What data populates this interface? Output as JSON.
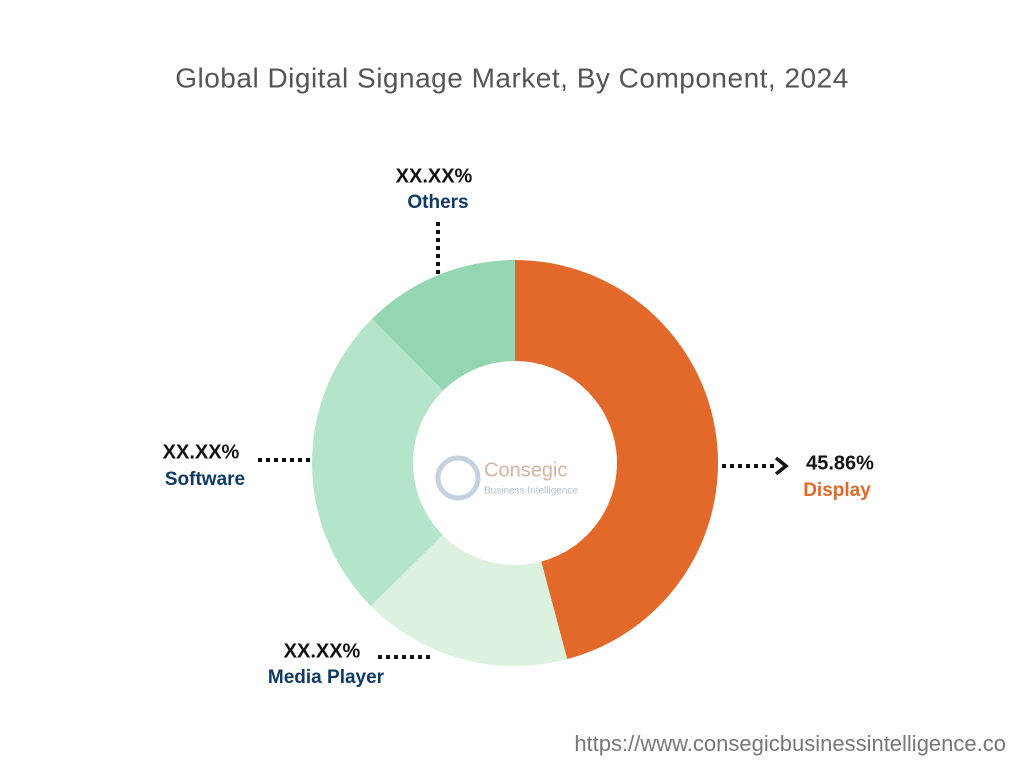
{
  "chart_data": {
    "type": "donut",
    "title": "Global Digital Signage Market, By Component, 2024",
    "categories": [
      "Display",
      "Media Player",
      "Software",
      "Others"
    ],
    "values": [
      45.86,
      16.7,
      25.0,
      12.44
    ],
    "value_labels": [
      "45.86%",
      "XX.XX%",
      "XX.XX%",
      "XX.XX%"
    ],
    "colors": [
      "#e2692a",
      "#dcf2df",
      "#b5e5c8",
      "#94d6b2"
    ],
    "label_colors": [
      "#e2692a",
      "#0e3a66",
      "#0e3a66",
      "#0e3a66"
    ],
    "watermark": {
      "name": "Consegic",
      "subtitle": "Business Intelligence"
    },
    "source_url": "https://www.consegicbusinessintelligence.co"
  }
}
